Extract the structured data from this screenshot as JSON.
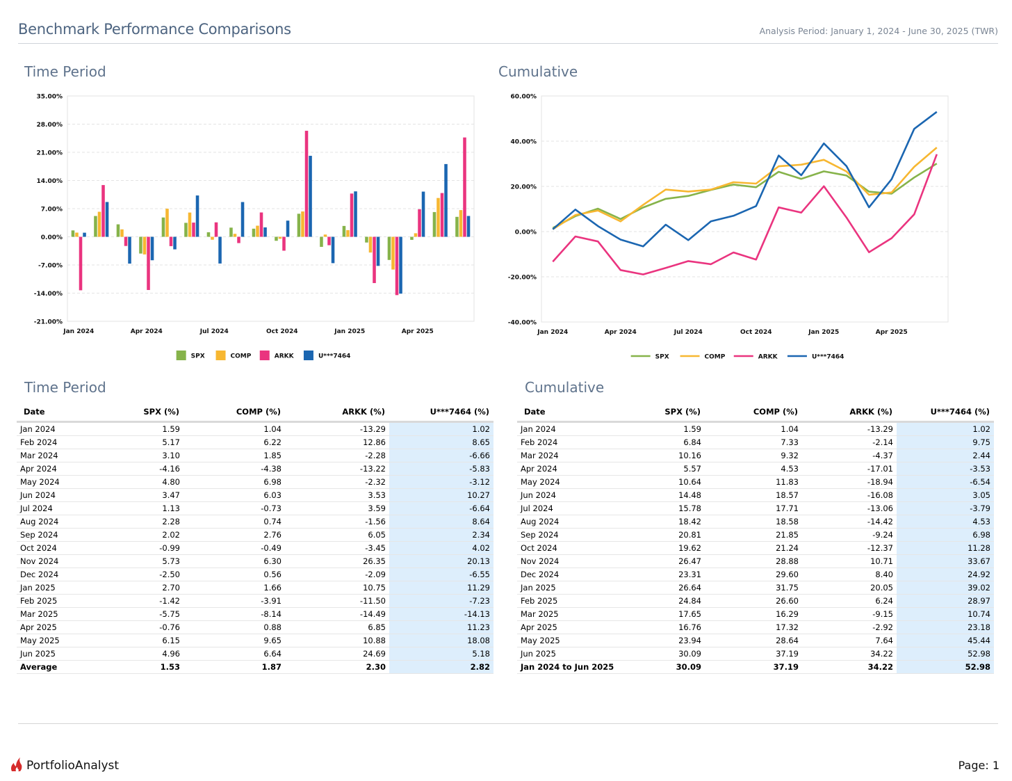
{
  "header": {
    "title": "Benchmark Performance Comparisons",
    "analysis_period": "Analysis Period: January 1, 2024 - June 30, 2025 (TWR)"
  },
  "colors": {
    "SPX": "#86b34a",
    "COMP": "#f7b731",
    "ARKK": "#ea347f",
    "U***7464": "#1b66b1"
  },
  "sections": {
    "time_period_chart": "Time Period",
    "cumulative_chart": "Cumulative",
    "time_period_table": "Time Period",
    "cumulative_table": "Cumulative"
  },
  "chart_data": [
    {
      "type": "bar",
      "ylim": [
        -21,
        35
      ],
      "yticks": [
        "35.00%",
        "28.00%",
        "21.00%",
        "14.00%",
        "7.00%",
        "0.00%",
        "-7.00%",
        "-14.00%",
        "-21.00%"
      ],
      "ytick_values": [
        35,
        28,
        21,
        14,
        7,
        0,
        -7,
        -14,
        -21
      ],
      "xtick_labels": [
        "Jan 2024",
        "Apr 2024",
        "Jul 2024",
        "Oct 2024",
        "Jan 2025",
        "Apr 2025"
      ],
      "xtick_index": [
        0,
        3,
        6,
        9,
        12,
        15
      ],
      "categories": [
        "Jan 2024",
        "Feb 2024",
        "Mar 2024",
        "Apr 2024",
        "May 2024",
        "Jun 2024",
        "Jul 2024",
        "Aug 2024",
        "Sep 2024",
        "Oct 2024",
        "Nov 2024",
        "Dec 2024",
        "Jan 2025",
        "Feb 2025",
        "Mar 2025",
        "Apr 2025",
        "May 2025",
        "Jun 2025"
      ],
      "legend": [
        "SPX",
        "COMP",
        "ARKK",
        "U***7464"
      ],
      "grid": true,
      "legend_position": "bottom",
      "series": [
        {
          "name": "SPX",
          "values": [
            1.59,
            5.17,
            3.1,
            -4.16,
            4.8,
            3.47,
            1.13,
            2.28,
            2.02,
            -0.99,
            5.73,
            -2.5,
            2.7,
            -1.42,
            -5.75,
            -0.76,
            6.15,
            4.96
          ]
        },
        {
          "name": "COMP",
          "values": [
            1.04,
            6.22,
            1.85,
            -4.38,
            6.98,
            6.03,
            -0.73,
            0.74,
            2.76,
            -0.49,
            6.3,
            0.56,
            1.66,
            -3.91,
            -8.14,
            0.88,
            9.65,
            6.64
          ]
        },
        {
          "name": "ARKK",
          "values": [
            -13.29,
            12.86,
            -2.28,
            -13.22,
            -2.32,
            3.53,
            3.59,
            -1.56,
            6.05,
            -3.45,
            26.35,
            -2.09,
            10.75,
            -11.5,
            -14.49,
            6.85,
            10.88,
            24.69
          ]
        },
        {
          "name": "U***7464",
          "values": [
            1.02,
            8.65,
            -6.66,
            -5.83,
            -3.12,
            10.27,
            -6.64,
            8.64,
            2.34,
            4.02,
            20.13,
            -6.55,
            11.29,
            -7.23,
            -14.13,
            11.23,
            18.08,
            5.18
          ]
        }
      ]
    },
    {
      "type": "line",
      "ylim": [
        -40,
        60
      ],
      "yticks": [
        "60.00%",
        "40.00%",
        "20.00%",
        "0.00%",
        "-20.00%",
        "-40.00%"
      ],
      "ytick_values": [
        60,
        40,
        20,
        0,
        -20,
        -40
      ],
      "xtick_labels": [
        "Jan 2024",
        "Apr 2024",
        "Jul 2024",
        "Oct 2024",
        "Jan 2025",
        "Apr 2025"
      ],
      "xtick_index": [
        0,
        3,
        6,
        9,
        12,
        15
      ],
      "categories": [
        "Jan 2024",
        "Feb 2024",
        "Mar 2024",
        "Apr 2024",
        "May 2024",
        "Jun 2024",
        "Jul 2024",
        "Aug 2024",
        "Sep 2024",
        "Oct 2024",
        "Nov 2024",
        "Dec 2024",
        "Jan 2025",
        "Feb 2025",
        "Mar 2025",
        "Apr 2025",
        "May 2025",
        "Jun 2025"
      ],
      "legend": [
        "SPX",
        "COMP",
        "ARKK",
        "U***7464"
      ],
      "grid": true,
      "legend_position": "bottom",
      "series": [
        {
          "name": "SPX",
          "values": [
            1.59,
            6.84,
            10.16,
            5.57,
            10.64,
            14.48,
            15.78,
            18.42,
            20.81,
            19.62,
            26.47,
            23.31,
            26.64,
            24.84,
            17.65,
            16.76,
            23.94,
            30.09
          ]
        },
        {
          "name": "COMP",
          "values": [
            1.04,
            7.33,
            9.32,
            4.53,
            11.83,
            18.57,
            17.71,
            18.58,
            21.85,
            21.24,
            28.88,
            29.6,
            31.75,
            26.6,
            16.29,
            17.32,
            28.64,
            37.19
          ]
        },
        {
          "name": "ARKK",
          "values": [
            -13.29,
            -2.14,
            -4.37,
            -17.01,
            -18.94,
            -16.08,
            -13.06,
            -14.42,
            -9.24,
            -12.37,
            10.71,
            8.4,
            20.05,
            6.24,
            -9.15,
            -2.92,
            7.64,
            34.22
          ]
        },
        {
          "name": "U***7464",
          "values": [
            1.02,
            9.75,
            2.44,
            -3.53,
            -6.54,
            3.05,
            -3.79,
            4.53,
            6.98,
            11.28,
            33.67,
            24.92,
            39.02,
            28.97,
            10.74,
            23.18,
            45.44,
            52.98
          ]
        }
      ]
    }
  ],
  "tables": {
    "time_period": {
      "headers": [
        "Date",
        "SPX (%)",
        "COMP (%)",
        "ARKK (%)",
        "U***7464 (%)"
      ],
      "rows": [
        [
          "Jan 2024",
          "1.59",
          "1.04",
          "-13.29",
          "1.02"
        ],
        [
          "Feb 2024",
          "5.17",
          "6.22",
          "12.86",
          "8.65"
        ],
        [
          "Mar 2024",
          "3.10",
          "1.85",
          "-2.28",
          "-6.66"
        ],
        [
          "Apr 2024",
          "-4.16",
          "-4.38",
          "-13.22",
          "-5.83"
        ],
        [
          "May 2024",
          "4.80",
          "6.98",
          "-2.32",
          "-3.12"
        ],
        [
          "Jun 2024",
          "3.47",
          "6.03",
          "3.53",
          "10.27"
        ],
        [
          "Jul 2024",
          "1.13",
          "-0.73",
          "3.59",
          "-6.64"
        ],
        [
          "Aug 2024",
          "2.28",
          "0.74",
          "-1.56",
          "8.64"
        ],
        [
          "Sep 2024",
          "2.02",
          "2.76",
          "6.05",
          "2.34"
        ],
        [
          "Oct 2024",
          "-0.99",
          "-0.49",
          "-3.45",
          "4.02"
        ],
        [
          "Nov 2024",
          "5.73",
          "6.30",
          "26.35",
          "20.13"
        ],
        [
          "Dec 2024",
          "-2.50",
          "0.56",
          "-2.09",
          "-6.55"
        ],
        [
          "Jan 2025",
          "2.70",
          "1.66",
          "10.75",
          "11.29"
        ],
        [
          "Feb 2025",
          "-1.42",
          "-3.91",
          "-11.50",
          "-7.23"
        ],
        [
          "Mar 2025",
          "-5.75",
          "-8.14",
          "-14.49",
          "-14.13"
        ],
        [
          "Apr 2025",
          "-0.76",
          "0.88",
          "6.85",
          "11.23"
        ],
        [
          "May 2025",
          "6.15",
          "9.65",
          "10.88",
          "18.08"
        ],
        [
          "Jun 2025",
          "4.96",
          "6.64",
          "24.69",
          "5.18"
        ]
      ],
      "summary": [
        "Average",
        "1.53",
        "1.87",
        "2.30",
        "2.82"
      ]
    },
    "cumulative": {
      "headers": [
        "Date",
        "SPX (%)",
        "COMP (%)",
        "ARKK (%)",
        "U***7464 (%)"
      ],
      "rows": [
        [
          "Jan 2024",
          "1.59",
          "1.04",
          "-13.29",
          "1.02"
        ],
        [
          "Feb 2024",
          "6.84",
          "7.33",
          "-2.14",
          "9.75"
        ],
        [
          "Mar 2024",
          "10.16",
          "9.32",
          "-4.37",
          "2.44"
        ],
        [
          "Apr 2024",
          "5.57",
          "4.53",
          "-17.01",
          "-3.53"
        ],
        [
          "May 2024",
          "10.64",
          "11.83",
          "-18.94",
          "-6.54"
        ],
        [
          "Jun 2024",
          "14.48",
          "18.57",
          "-16.08",
          "3.05"
        ],
        [
          "Jul 2024",
          "15.78",
          "17.71",
          "-13.06",
          "-3.79"
        ],
        [
          "Aug 2024",
          "18.42",
          "18.58",
          "-14.42",
          "4.53"
        ],
        [
          "Sep 2024",
          "20.81",
          "21.85",
          "-9.24",
          "6.98"
        ],
        [
          "Oct 2024",
          "19.62",
          "21.24",
          "-12.37",
          "11.28"
        ],
        [
          "Nov 2024",
          "26.47",
          "28.88",
          "10.71",
          "33.67"
        ],
        [
          "Dec 2024",
          "23.31",
          "29.60",
          "8.40",
          "24.92"
        ],
        [
          "Jan 2025",
          "26.64",
          "31.75",
          "20.05",
          "39.02"
        ],
        [
          "Feb 2025",
          "24.84",
          "26.60",
          "6.24",
          "28.97"
        ],
        [
          "Mar 2025",
          "17.65",
          "16.29",
          "-9.15",
          "10.74"
        ],
        [
          "Apr 2025",
          "16.76",
          "17.32",
          "-2.92",
          "23.18"
        ],
        [
          "May 2025",
          "23.94",
          "28.64",
          "7.64",
          "45.44"
        ],
        [
          "Jun 2025",
          "30.09",
          "37.19",
          "34.22",
          "52.98"
        ]
      ],
      "summary": [
        "Jan 2024 to Jun 2025",
        "30.09",
        "37.19",
        "34.22",
        "52.98"
      ]
    }
  },
  "footer": {
    "brand": "PortfolioAnalyst",
    "page": "Page: 1"
  }
}
